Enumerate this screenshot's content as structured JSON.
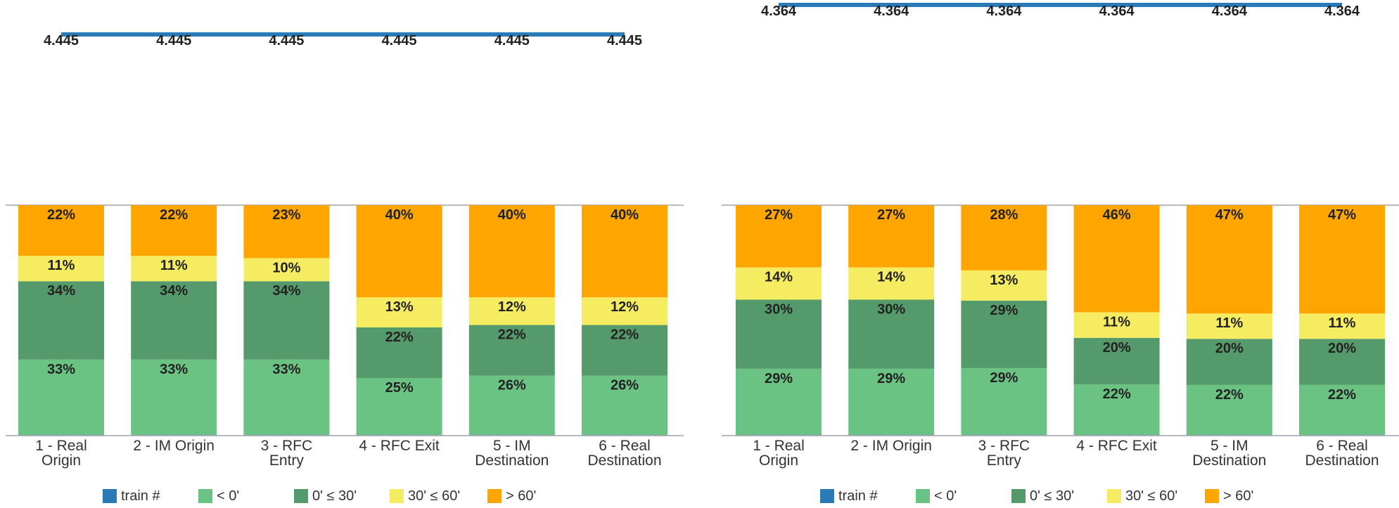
{
  "chart_data": [
    {
      "type": "bar",
      "stacked": true,
      "categories": [
        "1 - Real Origin",
        "2 - IM Origin",
        "3 - RFC Entry",
        "4 - RFC Exit",
        "5 - IM Destination",
        "6 - Real Destination"
      ],
      "series": [
        {
          "name": "< 0'",
          "color": "#6ac283",
          "values": [
            33,
            33,
            33,
            25,
            26,
            26
          ],
          "labels": [
            "33%",
            "33%",
            "33%",
            "25%",
            "26%",
            "26%"
          ]
        },
        {
          "name": "0' ≤ 30'",
          "color": "#559a6a",
          "values": [
            34,
            34,
            34,
            22,
            22,
            22
          ],
          "labels": [
            "34%",
            "34%",
            "34%",
            "22%",
            "22%",
            "22%"
          ]
        },
        {
          "name": "30' ≤ 60'",
          "color": "#f6ec61",
          "values": [
            11,
            11,
            10,
            13,
            12,
            12
          ],
          "labels": [
            "11%",
            "11%",
            "10%",
            "13%",
            "12%",
            "12%"
          ]
        },
        {
          "name": "> 60'",
          "color": "#ffa500",
          "values": [
            22,
            22,
            23,
            40,
            40,
            40
          ],
          "labels": [
            "22%",
            "22%",
            "23%",
            "40%",
            "40%",
            "40%"
          ]
        }
      ],
      "line_series": {
        "name": "train #",
        "color": "#2a7ab8",
        "values": [
          4445,
          4445,
          4445,
          4445,
          4445,
          4445
        ],
        "labels": [
          "4.445",
          "4.445",
          "4.445",
          "4.445",
          "4.445",
          "4.445"
        ]
      },
      "ylim": [
        0,
        100
      ],
      "legend": "bottom"
    },
    {
      "type": "bar",
      "stacked": true,
      "categories": [
        "1 - Real Origin",
        "2 - IM Origin",
        "3 - RFC Entry",
        "4 - RFC Exit",
        "5 - IM Destination",
        "6 - Real Destination"
      ],
      "series": [
        {
          "name": "< 0'",
          "color": "#6ac283",
          "values": [
            29,
            29,
            29,
            22,
            22,
            22
          ],
          "labels": [
            "29%",
            "29%",
            "29%",
            "22%",
            "22%",
            "22%"
          ]
        },
        {
          "name": "0' ≤ 30'",
          "color": "#559a6a",
          "values": [
            30,
            30,
            29,
            20,
            20,
            20
          ],
          "labels": [
            "30%",
            "30%",
            "29%",
            "20%",
            "20%",
            "20%"
          ]
        },
        {
          "name": "30' ≤ 60'",
          "color": "#f6ec61",
          "values": [
            14,
            14,
            13,
            11,
            11,
            11
          ],
          "labels": [
            "14%",
            "14%",
            "13%",
            "11%",
            "11%",
            "11%"
          ]
        },
        {
          "name": "> 60'",
          "color": "#ffa500",
          "values": [
            27,
            27,
            28,
            46,
            47,
            47
          ],
          "labels": [
            "27%",
            "27%",
            "28%",
            "46%",
            "47%",
            "47%"
          ]
        }
      ],
      "line_series": {
        "name": "train #",
        "color": "#2a7ab8",
        "values": [
          4364,
          4364,
          4364,
          4364,
          4364,
          4364
        ],
        "labels": [
          "4.364",
          "4.364",
          "4.364",
          "4.364",
          "4.364",
          "4.364"
        ]
      },
      "ylim": [
        0,
        100
      ],
      "legend": "bottom"
    }
  ]
}
